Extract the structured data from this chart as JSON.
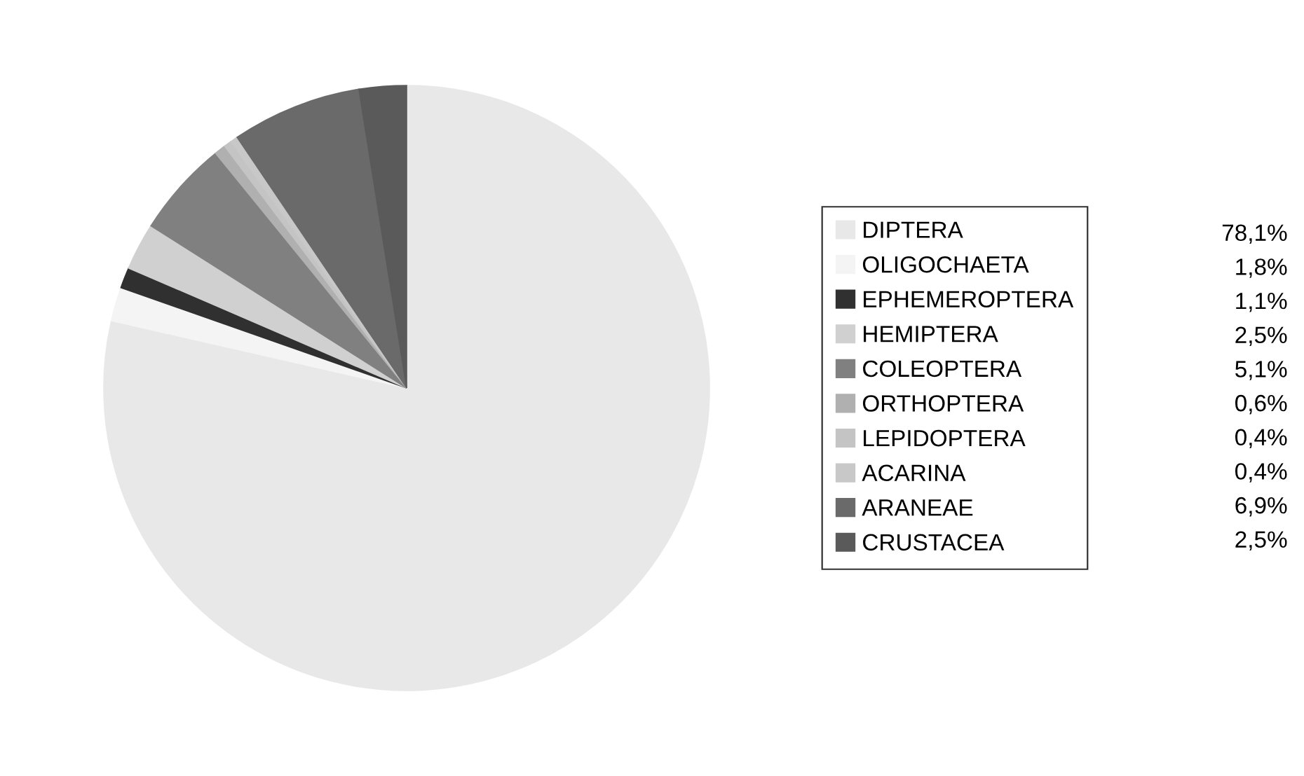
{
  "chart_data": {
    "type": "pie",
    "categories": [
      "DIPTERA",
      "OLIGOCHAETA",
      "EPHEMEROPTERA",
      "HEMIPTERA",
      "COLEOPTERA",
      "ORTHOPTERA",
      "LEPIDOPTERA",
      "ACARINA",
      "ARANEAE",
      "CRUSTACEA"
    ],
    "values": [
      78.1,
      1.8,
      1.1,
      2.5,
      5.1,
      0.6,
      0.4,
      0.4,
      6.9,
      2.5
    ],
    "value_labels": [
      "78,1%",
      "1,8%",
      "1,1%",
      "2,5%",
      "5,1%",
      "0,6%",
      "0,4%",
      "0,4%",
      "6,9%",
      "2,5%"
    ],
    "colors": [
      "#e8e8e8",
      "#f4f4f4",
      "#303030",
      "#d0d0d0",
      "#808080",
      "#b0b0b0",
      "#c4c4c4",
      "#c8c8c8",
      "#6a6a6a",
      "#5a5a5a"
    ],
    "legend": "right"
  }
}
